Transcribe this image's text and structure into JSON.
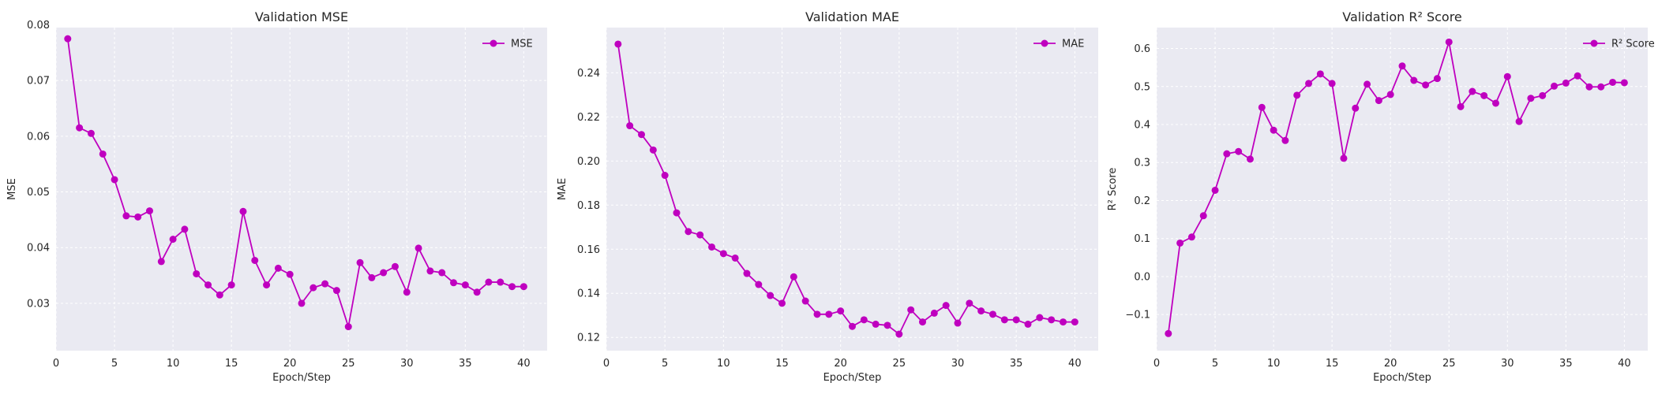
{
  "style": {
    "line_color": "#bf00bf",
    "plot_bg": "#eaeaf2",
    "grid_color": "#ffffff"
  },
  "chart_data": [
    {
      "type": "line",
      "title": "Validation MSE",
      "xlabel": "Epoch/Step",
      "ylabel": "MSE",
      "xlim": [
        0,
        42
      ],
      "ylim": [
        0.0215,
        0.0795
      ],
      "xticks": [
        0,
        5,
        10,
        15,
        20,
        25,
        30,
        35,
        40
      ],
      "xtick_labels": [
        "0",
        "5",
        "10",
        "15",
        "20",
        "25",
        "30",
        "35",
        "40"
      ],
      "yticks": [
        0.03,
        0.04,
        0.05,
        0.06,
        0.07,
        0.08
      ],
      "ytick_labels": [
        "0.03",
        "0.04",
        "0.05",
        "0.06",
        "0.07",
        "0.08"
      ],
      "grid": true,
      "legend_position": "top-right",
      "x": [
        1,
        2,
        3,
        4,
        5,
        6,
        7,
        8,
        9,
        10,
        11,
        12,
        13,
        14,
        15,
        16,
        17,
        18,
        19,
        20,
        21,
        22,
        23,
        24,
        25,
        26,
        27,
        28,
        29,
        30,
        31,
        32,
        33,
        34,
        35,
        36,
        37,
        38,
        39,
        40
      ],
      "series": [
        {
          "name": "MSE",
          "values": [
            0.0775,
            0.0615,
            0.0605,
            0.0568,
            0.0522,
            0.0457,
            0.0455,
            0.0466,
            0.0375,
            0.0415,
            0.0433,
            0.0353,
            0.0333,
            0.0315,
            0.0333,
            0.0465,
            0.0377,
            0.0333,
            0.0363,
            0.0352,
            0.03,
            0.0328,
            0.0335,
            0.0323,
            0.0258,
            0.0373,
            0.0346,
            0.0355,
            0.0366,
            0.032,
            0.0399,
            0.0358,
            0.0355,
            0.0337,
            0.0333,
            0.032,
            0.0338,
            0.0338,
            0.033,
            0.033
          ]
        }
      ]
    },
    {
      "type": "line",
      "title": "Validation MAE",
      "xlabel": "Epoch/Step",
      "ylabel": "MAE",
      "xlim": [
        0,
        42
      ],
      "ylim": [
        0.114,
        0.2605
      ],
      "xticks": [
        0,
        5,
        10,
        15,
        20,
        25,
        30,
        35,
        40
      ],
      "xtick_labels": [
        "0",
        "5",
        "10",
        "15",
        "20",
        "25",
        "30",
        "35",
        "40"
      ],
      "yticks": [
        0.12,
        0.14,
        0.16,
        0.18,
        0.2,
        0.22,
        0.24
      ],
      "ytick_labels": [
        "0.12",
        "0.14",
        "0.16",
        "0.18",
        "0.20",
        "0.22",
        "0.24"
      ],
      "grid": true,
      "legend_position": "top-right",
      "x": [
        1,
        2,
        3,
        4,
        5,
        6,
        7,
        8,
        9,
        10,
        11,
        12,
        13,
        14,
        15,
        16,
        17,
        18,
        19,
        20,
        21,
        22,
        23,
        24,
        25,
        26,
        27,
        28,
        29,
        30,
        31,
        32,
        33,
        34,
        35,
        36,
        37,
        38,
        39,
        40
      ],
      "series": [
        {
          "name": "MAE",
          "values": [
            0.253,
            0.216,
            0.212,
            0.205,
            0.1935,
            0.1765,
            0.168,
            0.1665,
            0.161,
            0.158,
            0.156,
            0.149,
            0.144,
            0.139,
            0.1355,
            0.1475,
            0.1365,
            0.1305,
            0.1305,
            0.132,
            0.125,
            0.128,
            0.126,
            0.1255,
            0.1215,
            0.1325,
            0.127,
            0.131,
            0.1345,
            0.1265,
            0.1355,
            0.132,
            0.1305,
            0.128,
            0.128,
            0.126,
            0.129,
            0.128,
            0.127,
            0.127
          ]
        }
      ]
    },
    {
      "type": "line",
      "title": "Validation R² Score",
      "xlabel": "Epoch/Step",
      "ylabel": "R² Score",
      "xlim": [
        0,
        42
      ],
      "ylim": [
        -0.195,
        0.655
      ],
      "xticks": [
        0,
        5,
        10,
        15,
        20,
        25,
        30,
        35,
        40
      ],
      "xtick_labels": [
        "0",
        "5",
        "10",
        "15",
        "20",
        "25",
        "30",
        "35",
        "40"
      ],
      "yticks": [
        -0.1,
        0.0,
        0.1,
        0.2,
        0.3,
        0.4,
        0.5,
        0.6
      ],
      "ytick_labels": [
        "−0.1",
        "0.0",
        "0.1",
        "0.2",
        "0.3",
        "0.4",
        "0.5",
        "0.6"
      ],
      "grid": true,
      "legend_position": "top-right",
      "x": [
        1,
        2,
        3,
        4,
        5,
        6,
        7,
        8,
        9,
        10,
        11,
        12,
        13,
        14,
        15,
        16,
        17,
        18,
        19,
        20,
        21,
        22,
        23,
        24,
        25,
        26,
        27,
        28,
        29,
        30,
        31,
        32,
        33,
        34,
        35,
        36,
        37,
        38,
        39,
        40
      ],
      "series": [
        {
          "name": "R² Score",
          "values": [
            -0.15,
            0.088,
            0.104,
            0.16,
            0.227,
            0.323,
            0.329,
            0.309,
            0.445,
            0.385,
            0.358,
            0.477,
            0.508,
            0.533,
            0.508,
            0.311,
            0.443,
            0.506,
            0.463,
            0.479,
            0.554,
            0.516,
            0.504,
            0.521,
            0.617,
            0.447,
            0.487,
            0.476,
            0.456,
            0.526,
            0.408,
            0.469,
            0.476,
            0.501,
            0.509,
            0.528,
            0.499,
            0.499,
            0.511,
            0.51
          ]
        }
      ]
    }
  ]
}
